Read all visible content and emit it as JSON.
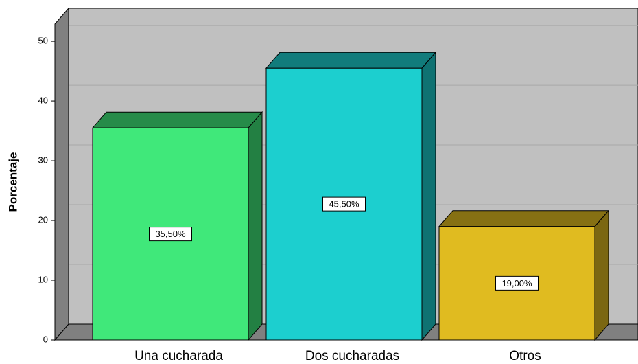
{
  "chart_data": {
    "type": "bar3d",
    "ylabel": "Porcentaje",
    "categories": [
      "Una cucharada",
      "Dos cucharadas",
      "Otros"
    ],
    "values": [
      35.5,
      45.5,
      19
    ],
    "value_labels": [
      "35,50%",
      "45,50%",
      "19,00%"
    ],
    "colors": [
      "#40e87a",
      "#1ccfcf",
      "#e0bb20"
    ],
    "ylim": [
      0,
      53
    ],
    "yticks": [
      0,
      10,
      20,
      30,
      40,
      50
    ],
    "grid": true
  }
}
